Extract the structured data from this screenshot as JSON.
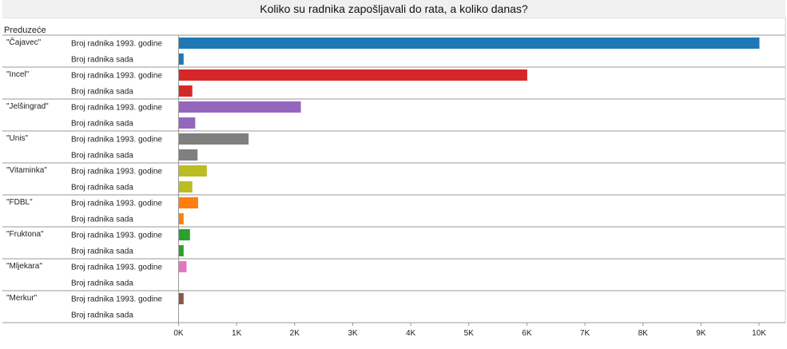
{
  "title": "Koliko su radnika zapošljavali do rata, a koliko danas?",
  "row_header": "Preduzeće",
  "chart_data": {
    "type": "bar",
    "orientation": "horizontal",
    "title": "Koliko su radnika zapošljavali do rata, a koliko danas?",
    "row_header": "Preduzeće",
    "measures": [
      "Broj radnika 1993. godine",
      "Broj radnika sada"
    ],
    "xlim": [
      0,
      10000
    ],
    "ticks": [
      0,
      1000,
      2000,
      3000,
      4000,
      5000,
      6000,
      7000,
      8000,
      9000,
      10000
    ],
    "tick_labels": [
      "0K",
      "1K",
      "2K",
      "3K",
      "4K",
      "5K",
      "6K",
      "7K",
      "8K",
      "9K",
      "10K"
    ],
    "grid": false,
    "groups": [
      {
        "name": "\"Čajavec\"",
        "color": "#1f77b4",
        "values": [
          10000,
          80
        ]
      },
      {
        "name": "\"Incel\"",
        "color": "#d62728",
        "values": [
          6000,
          230
        ]
      },
      {
        "name": "\"Jelšingrad\"",
        "color": "#9467bd",
        "values": [
          2100,
          280
        ]
      },
      {
        "name": "\"Unis\"",
        "color": "#7f7f7f",
        "values": [
          1200,
          320
        ]
      },
      {
        "name": "\"Vitaminka\"",
        "color": "#bcbd22",
        "values": [
          480,
          230
        ]
      },
      {
        "name": "\"FDBL\"",
        "color": "#ff7f0e",
        "values": [
          330,
          80
        ]
      },
      {
        "name": "\"Fruktona\"",
        "color": "#2ca02c",
        "values": [
          190,
          80
        ]
      },
      {
        "name": "\"Mljekara\"",
        "color": "#e377c2",
        "values": [
          130,
          0
        ]
      },
      {
        "name": "\"Merkur\"",
        "color": "#8c564b",
        "values": [
          80,
          0
        ]
      }
    ]
  }
}
